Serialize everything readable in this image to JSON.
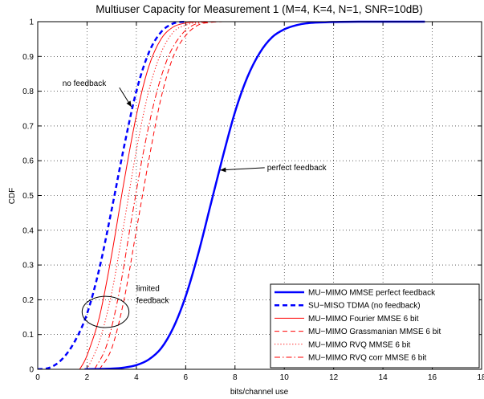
{
  "chart_data": {
    "type": "line",
    "title": "Multiuser Capacity for Measurement 1 (M=4, K=4, N=1, SNR=10dB)",
    "xlabel": "bits/channel use",
    "ylabel": "CDF",
    "xlim": [
      0,
      18
    ],
    "ylim": [
      0,
      1
    ],
    "xticks": [
      0,
      2,
      4,
      6,
      8,
      10,
      12,
      14,
      16,
      18
    ],
    "yticks": [
      0,
      0.1,
      0.2,
      0.3,
      0.4,
      0.5,
      0.6,
      0.7,
      0.8,
      0.9,
      1
    ],
    "grid": true,
    "legend_position": "bottom-right",
    "series": [
      {
        "name": "MU−MIMO MMSE perfect feedback",
        "color": "#0000ff",
        "style": "solid",
        "width": 2.5,
        "x": [
          1.9,
          2.5,
          3.0,
          3.5,
          4.0,
          4.5,
          5.0,
          5.5,
          6.0,
          6.5,
          7.0,
          7.5,
          8.0,
          8.5,
          9.0,
          9.5,
          10.0,
          10.5,
          11.0,
          12.0,
          13.0,
          14.0,
          15.7
        ],
        "y": [
          0.0,
          0.001,
          0.002,
          0.005,
          0.012,
          0.028,
          0.06,
          0.12,
          0.21,
          0.33,
          0.47,
          0.61,
          0.74,
          0.84,
          0.91,
          0.955,
          0.978,
          0.99,
          0.996,
          0.999,
          1.0,
          1.0,
          1.0
        ]
      },
      {
        "name": "SU−MISO TDMA (no feedback)",
        "color": "#0000ff",
        "style": "dashed",
        "width": 2.5,
        "x": [
          0.0,
          0.5,
          1.0,
          1.5,
          2.0,
          2.5,
          3.0,
          3.5,
          4.0,
          4.5,
          5.0,
          5.5,
          6.0
        ],
        "y": [
          0.0,
          0.005,
          0.03,
          0.08,
          0.16,
          0.29,
          0.46,
          0.64,
          0.8,
          0.91,
          0.97,
          0.995,
          1.0
        ]
      },
      {
        "name": "MU−MIMO Fourier MMSE 6 bit",
        "color": "#ff0000",
        "style": "solid",
        "width": 1,
        "x": [
          1.7,
          2.0,
          2.5,
          3.0,
          3.5,
          4.0,
          4.5,
          5.0,
          5.5,
          6.0,
          6.5,
          7.0
        ],
        "y": [
          0.0,
          0.04,
          0.15,
          0.33,
          0.54,
          0.73,
          0.87,
          0.95,
          0.985,
          0.996,
          1.0,
          1.0
        ]
      },
      {
        "name": "MU−MIMO Grassmanian MMSE 6 bit",
        "color": "#ff0000",
        "style": "dashed",
        "width": 1,
        "x": [
          2.5,
          3.0,
          3.5,
          4.0,
          4.5,
          5.0,
          5.5,
          6.0,
          6.5,
          7.0,
          7.5
        ],
        "y": [
          0.0,
          0.06,
          0.2,
          0.4,
          0.6,
          0.78,
          0.9,
          0.96,
          0.99,
          0.998,
          1.0
        ]
      },
      {
        "name": "MU−MIMO RVQ MMSE 6 bit",
        "color": "#ff0000",
        "style": "dotted",
        "width": 1,
        "x": [
          2.0,
          2.5,
          3.0,
          3.5,
          4.0,
          4.5,
          5.0,
          5.5,
          6.0,
          6.5,
          7.0
        ],
        "y": [
          0.0,
          0.08,
          0.22,
          0.42,
          0.63,
          0.8,
          0.91,
          0.97,
          0.99,
          0.998,
          1.0
        ]
      },
      {
        "name": "MU−MIMO RVQ corr MMSE 6 bit",
        "color": "#ff0000",
        "style": "dashdot",
        "width": 1,
        "x": [
          2.3,
          2.8,
          3.3,
          3.8,
          4.3,
          4.8,
          5.3,
          5.8,
          6.3,
          6.8,
          7.3
        ],
        "y": [
          0.0,
          0.07,
          0.22,
          0.43,
          0.63,
          0.79,
          0.9,
          0.96,
          0.99,
          0.998,
          1.0
        ]
      }
    ],
    "annotations": [
      {
        "text": "no feedback",
        "x": 1.0,
        "y": 0.815,
        "arrow_to": [
          3.8,
          0.755
        ]
      },
      {
        "text": "perfect feedback",
        "x": 9.3,
        "y": 0.573,
        "arrow_to": [
          7.4,
          0.573
        ]
      },
      {
        "text": "limited",
        "x": 4.0,
        "y": 0.225
      },
      {
        "text": "feedback",
        "x": 4.0,
        "y": 0.19
      },
      {
        "ellipse_center": [
          2.75,
          0.165
        ],
        "ellipse_radius_data": [
          0.95,
          0.045
        ]
      }
    ]
  }
}
